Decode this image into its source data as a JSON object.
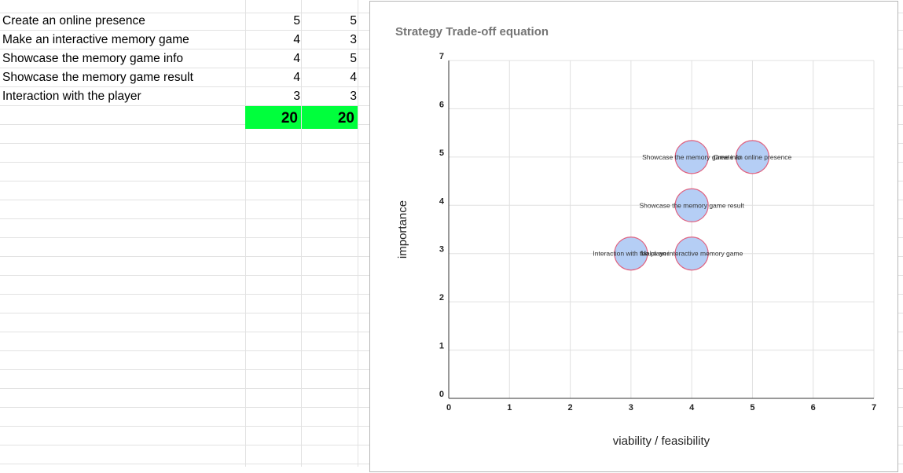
{
  "spreadsheet": {
    "rows": [
      {
        "label": "Create an online presence",
        "viability": "5",
        "importance": "5"
      },
      {
        "label": "Make an interactive memory game",
        "viability": "4",
        "importance": "3"
      },
      {
        "label": "Showcase the memory game info",
        "viability": "4",
        "importance": "5"
      },
      {
        "label": "Showcase the memory game result",
        "viability": "4",
        "importance": "4"
      },
      {
        "label": "Interaction with  the player",
        "viability": "3",
        "importance": "3"
      }
    ],
    "totals": {
      "viability": "20",
      "importance": "20"
    },
    "total_fill_color": "#00ff3c"
  },
  "chart_data": {
    "type": "scatter",
    "title": "Strategy Trade-off equation",
    "xlabel": "viability / feasibility",
    "ylabel": "importance",
    "xlim": [
      0,
      7
    ],
    "ylim": [
      0,
      7
    ],
    "xticks": [
      "0",
      "1",
      "2",
      "3",
      "4",
      "5",
      "6",
      "7"
    ],
    "yticks": [
      "0",
      "1",
      "2",
      "3",
      "4",
      "5",
      "6",
      "7"
    ],
    "grid": true,
    "bubble_fill": "#b5cef5",
    "bubble_stroke": "#e0607e",
    "points": [
      {
        "x": 5,
        "y": 5,
        "label": "Create an online presence"
      },
      {
        "x": 4,
        "y": 3,
        "label": "Make an interactive memory game"
      },
      {
        "x": 4,
        "y": 5,
        "label": "Showcase the memory game info"
      },
      {
        "x": 4,
        "y": 4,
        "label": "Showcase the memory game result"
      },
      {
        "x": 3,
        "y": 3,
        "label": "Interaction with  the player"
      }
    ]
  }
}
